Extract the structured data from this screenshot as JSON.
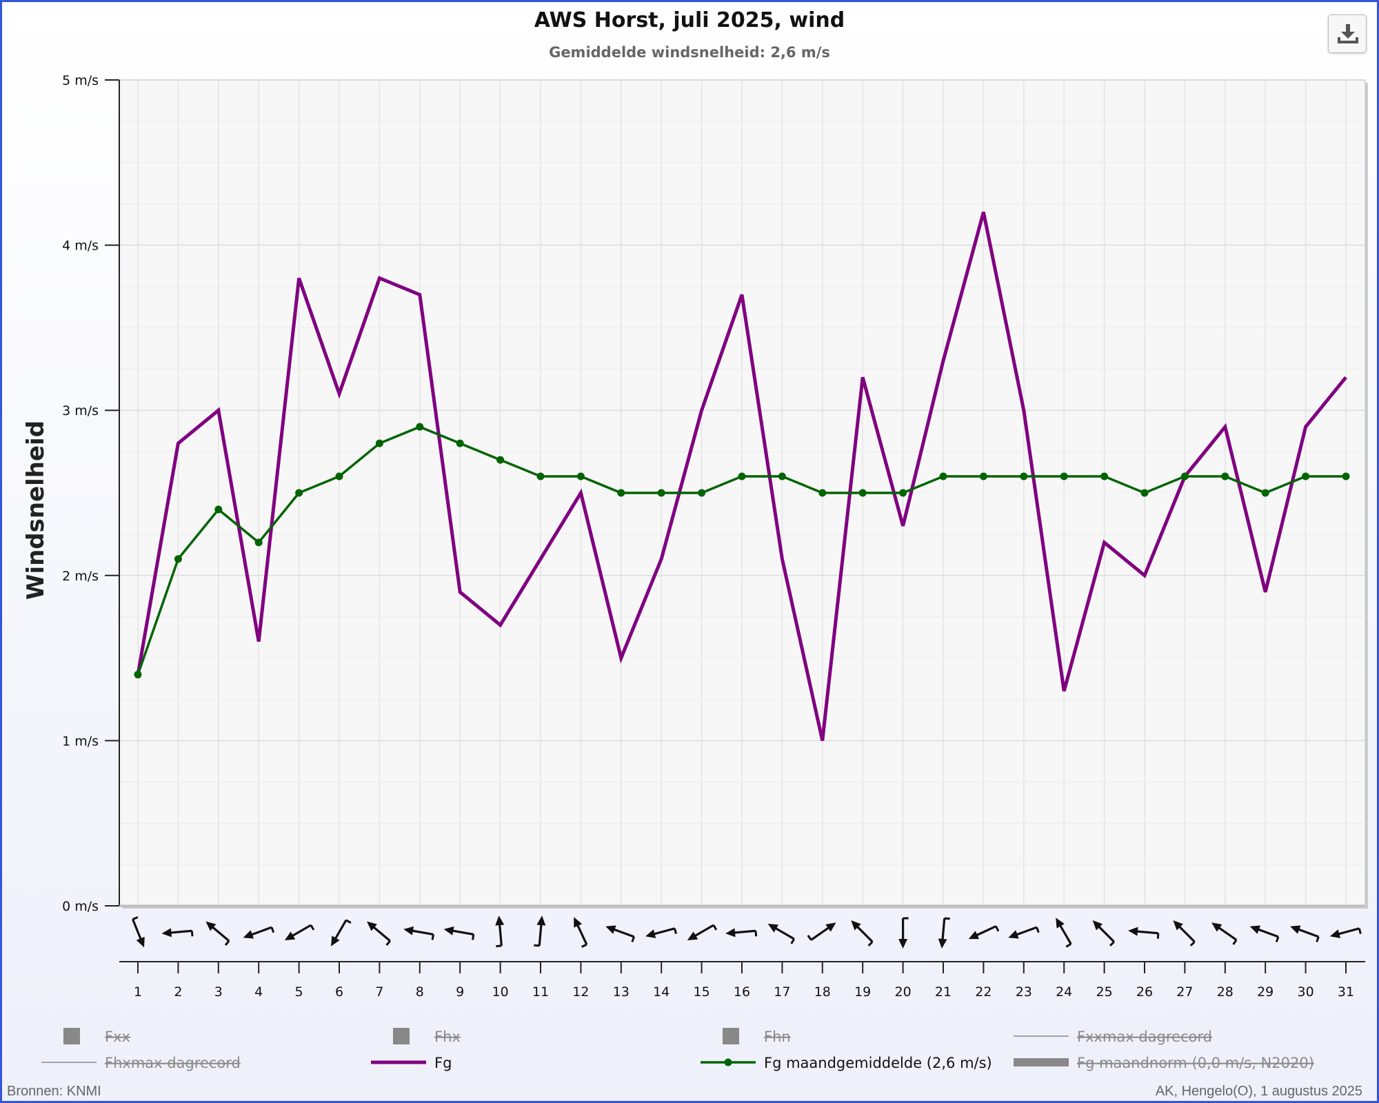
{
  "title": "AWS Horst, juli 2025, wind",
  "subtitle": "Gemiddelde windsnelheid: 2,6 m/s",
  "download_icon": "download-icon",
  "footer": {
    "left": "Bronnen: KNMI",
    "right": "AK, Hengelo(O), 1 augustus 2025"
  },
  "chart_data": {
    "type": "line",
    "title": "AWS Horst, juli 2025, wind",
    "subtitle": "Gemiddelde windsnelheid: 2,6 m/s",
    "ylabel": "Windsnelheid",
    "ylim": [
      0,
      5
    ],
    "y_ticks": [
      "0 m/s",
      "1 m/s",
      "2 m/s",
      "3 m/s",
      "4 m/s",
      "5 m/s"
    ],
    "x": [
      1,
      2,
      3,
      4,
      5,
      6,
      7,
      8,
      9,
      10,
      11,
      12,
      13,
      14,
      15,
      16,
      17,
      18,
      19,
      20,
      21,
      22,
      23,
      24,
      25,
      26,
      27,
      28,
      29,
      30,
      31
    ],
    "grid": true,
    "series": [
      {
        "name": "Fg",
        "color": "#800080",
        "values": [
          1.4,
          2.8,
          3.0,
          1.6,
          3.8,
          3.1,
          3.8,
          3.7,
          1.9,
          1.7,
          2.1,
          2.5,
          1.5,
          2.1,
          3.0,
          3.7,
          2.1,
          1.0,
          3.2,
          2.3,
          3.3,
          4.2,
          3.0,
          1.3,
          2.2,
          2.0,
          2.6,
          2.9,
          1.9,
          2.9,
          3.2
        ]
      },
      {
        "name": "Fg maandgemiddelde (2,6 m/s)",
        "color": "#006400",
        "values": [
          1.4,
          2.1,
          2.4,
          2.2,
          2.5,
          2.6,
          2.8,
          2.9,
          2.8,
          2.7,
          2.6,
          2.6,
          2.5,
          2.5,
          2.5,
          2.6,
          2.6,
          2.5,
          2.5,
          2.5,
          2.6,
          2.6,
          2.6,
          2.6,
          2.6,
          2.5,
          2.6,
          2.6,
          2.5,
          2.6,
          2.6
        ]
      }
    ],
    "wind_direction_deg": [
      338,
      85,
      130,
      70,
      60,
      30,
      130,
      100,
      100,
      175,
      185,
      155,
      110,
      75,
      60,
      85,
      120,
      235,
      135,
      0,
      5,
      65,
      70,
      150,
      135,
      95,
      135,
      125,
      110,
      110,
      75
    ],
    "legend_position": "bottom",
    "legend": [
      {
        "label": "Fxx",
        "kind": "square",
        "color": "#888888",
        "hidden": true
      },
      {
        "label": "Fhx",
        "kind": "square",
        "color": "#888888",
        "hidden": true
      },
      {
        "label": "Fhn",
        "kind": "square",
        "color": "#888888",
        "hidden": true
      },
      {
        "label": "Fxxmax dagrecord",
        "kind": "thinline",
        "color": "#888888",
        "hidden": true
      },
      {
        "label": "Fhxmax dagrecord",
        "kind": "thinline",
        "color": "#888888",
        "hidden": true
      },
      {
        "label": "Fg",
        "kind": "line",
        "color": "#800080",
        "hidden": false
      },
      {
        "label": "Fg maandgemiddelde (2,6 m/s)",
        "kind": "dotline",
        "color": "#006400",
        "hidden": false
      },
      {
        "label": "Fg maandnorm (0,0 m/s, N2020)",
        "kind": "thickline",
        "color": "#888888",
        "hidden": true
      }
    ]
  }
}
